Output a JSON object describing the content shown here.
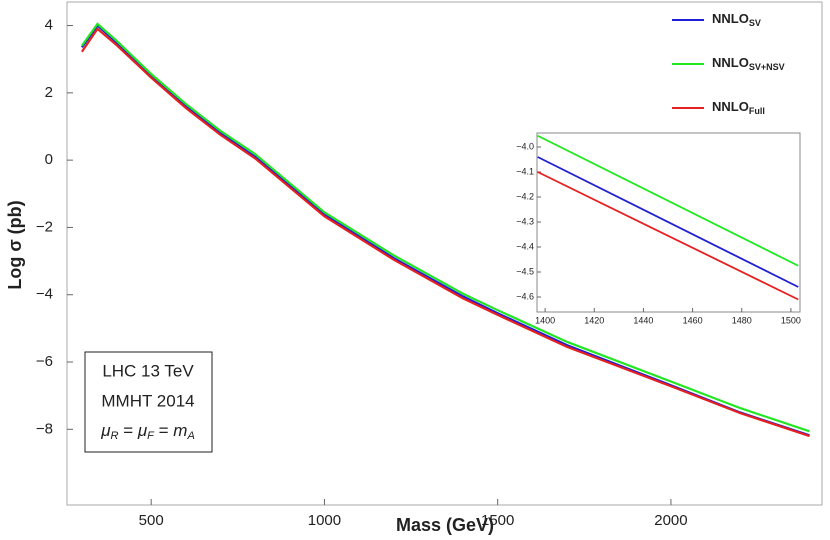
{
  "chart_data": [
    {
      "type": "line",
      "x_label": "Mass (GeV)",
      "y_label": "Log σ (pb)",
      "annotations": [
        "LHC 13 TeV",
        "MMHT 2014"
      ],
      "formula": [
        "μ",
        "R",
        " = ",
        "μ",
        "F",
        " = ",
        "m",
        "A"
      ],
      "x": [
        300,
        345,
        400,
        500,
        600,
        700,
        800,
        1000,
        1200,
        1400,
        1500,
        1700,
        2000,
        2200,
        2400
      ],
      "series": [
        {
          "name": "NNLO",
          "subscript": "SV",
          "color": "#1f1fd6",
          "values": [
            3.35,
            4.0,
            3.5,
            2.5,
            1.6,
            0.8,
            0.1,
            -1.62,
            -2.91,
            -4.05,
            -4.55,
            -5.5,
            -6.69,
            -7.5,
            -8.18
          ]
        },
        {
          "name": "NNLO",
          "subscript": "SV+NSV",
          "color": "#22e622",
          "values": [
            3.4,
            4.05,
            3.55,
            2.56,
            1.67,
            0.87,
            0.18,
            -1.55,
            -2.83,
            -3.97,
            -4.46,
            -5.4,
            -6.58,
            -7.37,
            -8.06
          ]
        },
        {
          "name": "NNLO",
          "subscript": "Full",
          "color": "#e62020",
          "values": [
            3.22,
            3.9,
            3.42,
            2.45,
            1.55,
            0.75,
            0.05,
            -1.67,
            -2.96,
            -4.11,
            -4.6,
            -5.55,
            -6.72,
            -7.52,
            -8.2
          ]
        }
      ],
      "xlim": [
        257,
        2436
      ],
      "ylim": [
        -10.25,
        4.7
      ],
      "xticks": [
        500,
        1000,
        1500,
        2000
      ],
      "yticks": [
        4,
        2,
        0,
        {
          "value": -2,
          "label": "−2"
        },
        {
          "value": -4,
          "label": "−4"
        },
        {
          "value": -6,
          "label": "−6"
        },
        {
          "value": -8,
          "label": "−8"
        }
      ],
      "legend": "top-right"
    },
    {
      "type": "line",
      "x": [
        1397,
        1503
      ],
      "series": [
        {
          "color": "#1f1fd6",
          "values": [
            -4.04,
            -4.56
          ]
        },
        {
          "color": "#22e622",
          "values": [
            -3.955,
            -4.475
          ]
        },
        {
          "color": "#e62020",
          "values": [
            -4.1,
            -4.61
          ]
        }
      ],
      "xlim": [
        1396.7,
        1503.7
      ],
      "ylim": [
        -4.66,
        -3.944
      ],
      "xticks": [
        1400,
        1420,
        1440,
        1460,
        1480,
        1500
      ],
      "yticks": [
        {
          "value": -4.0,
          "label": "−4.0"
        },
        {
          "value": -4.1,
          "label": "−4.1"
        },
        {
          "value": -4.2,
          "label": "−4.2"
        },
        {
          "value": -4.3,
          "label": "−4.3"
        },
        {
          "value": -4.4,
          "label": "−4.4"
        },
        {
          "value": -4.5,
          "label": "−4.5"
        },
        {
          "value": -4.6,
          "label": "−4.6"
        }
      ]
    }
  ]
}
